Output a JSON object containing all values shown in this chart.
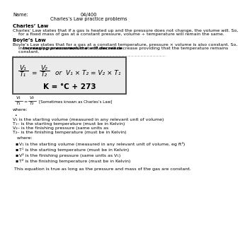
{
  "title_center": "04/400",
  "title_sub": "Charles’s Law practice problems",
  "header_left": "Name:",
  "section1_title": "Charles’ Law",
  "section1_line1": "Charles’ Law states that if a gas is heated up and the pressure does not change, the volume will. So,",
  "section1_line2": "    for a fixed mass of gas at a constant pressure, volume ÷ temperature will remain the same.",
  "section2_title": "Boyle’s Law",
  "section2_line1": "Boyle’s Law states that for a gas at a constant temperature, pressure × volume is also constant. So,",
  "section2_line2": "    increasing pressure means that volume will decrease providing that the temperature remains",
  "section2_line3": "    constant.",
  "charleslaw_label": "[Sometimes known as Charles’s Law]",
  "where_label": "where:",
  "desc1": "V₁ is the starting volume (measured in any relevant unit of volume)",
  "desc2": "T₁– is the starting temperature (must be in Kelvin)",
  "desc3": "V₂– is the finishing pressure (same units as",
  "desc4": "T₂– is the finishing temperature (must be in Kelvin)",
  "where2_label": "  where:",
  "bullet1": "V₁ is the starting volume (measured in any relevant unit of volume, eg ft³)",
  "bullet2": "T¹ is the starting temperature (must be in Kelvin)",
  "bullet3": "V² is the finishing pressure (same units as V₁)",
  "bullet4": "T² is the finishing temperature (must be in Kelvin)",
  "footer": "This equation is true as long as the pressure and mass of the gas are constant.",
  "bg_color": "#ffffff",
  "text_color": "#000000",
  "box_edge": "#444444",
  "box_face": "#ebebeb",
  "sep_color": "#bbbbbb"
}
